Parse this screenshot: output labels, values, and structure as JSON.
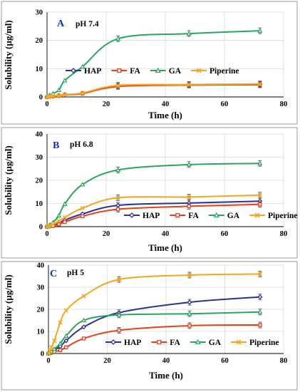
{
  "colors": {
    "HAP": "#2e3192",
    "FA": "#e8411a",
    "GA": "#2aa55c",
    "Piperine": "#f5a623"
  },
  "chart_data": [
    {
      "type": "line",
      "panel_label": "A",
      "title": "pH 7.4",
      "xlabel": "Time (h)",
      "ylabel": "Solubility (µg/ml)",
      "xlim": [
        0,
        80
      ],
      "ylim": [
        0,
        30
      ],
      "x_ticks": [
        0,
        20,
        40,
        60,
        80
      ],
      "y_ticks": [
        0,
        10,
        20,
        30
      ],
      "grid": true,
      "legend_position": "upper-left, single row",
      "series": [
        {
          "name": "HAP",
          "marker": "diamond",
          "x": [
            0,
            0.5,
            1,
            2,
            4,
            6,
            12,
            24,
            48,
            72
          ],
          "y": [
            0,
            0.1,
            0.2,
            0.3,
            0.5,
            0.8,
            1.3,
            4.0,
            4.3,
            4.5
          ]
        },
        {
          "name": "FA",
          "marker": "square",
          "x": [
            0,
            0.5,
            1,
            2,
            4,
            6,
            12,
            24,
            48,
            72
          ],
          "y": [
            0,
            0.1,
            0.1,
            0.2,
            0.4,
            0.7,
            1.2,
            3.7,
            4.2,
            4.3
          ]
        },
        {
          "name": "GA",
          "marker": "triangle",
          "x": [
            0,
            0.5,
            1,
            2,
            4,
            6,
            12,
            24,
            48,
            72
          ],
          "y": [
            0,
            0.3,
            0.6,
            1.2,
            2.4,
            5.8,
            10.7,
            20.6,
            22.4,
            23.4
          ]
        },
        {
          "name": "Piperine",
          "marker": "x",
          "x": [
            0,
            0.5,
            1,
            2,
            4,
            6,
            12,
            24,
            48,
            72
          ],
          "y": [
            0,
            0.1,
            0.2,
            0.3,
            0.5,
            0.8,
            1.4,
            4.1,
            4.4,
            4.6
          ]
        }
      ]
    },
    {
      "type": "line",
      "panel_label": "B",
      "title": "pH 6.8",
      "xlabel": "Time (h)",
      "ylabel": "Solubility (µg/ml)",
      "xlim": [
        0,
        80
      ],
      "ylim": [
        0,
        40
      ],
      "x_ticks": [
        0,
        20,
        40,
        60,
        80
      ],
      "y_ticks": [
        0,
        10,
        20,
        30,
        40
      ],
      "grid": true,
      "legend_position": "bottom-right, single row",
      "series": [
        {
          "name": "HAP",
          "marker": "diamond",
          "x": [
            0,
            0.5,
            1,
            2,
            4,
            6,
            12,
            24,
            48,
            72
          ],
          "y": [
            0,
            0.1,
            0.2,
            0.4,
            1.5,
            2.8,
            5.5,
            9.2,
            10.2,
            11.0
          ]
        },
        {
          "name": "FA",
          "marker": "square",
          "x": [
            0,
            0.5,
            1,
            2,
            4,
            6,
            12,
            24,
            48,
            72
          ],
          "y": [
            0,
            0.1,
            0.2,
            0.3,
            1.0,
            2.0,
            4.5,
            7.5,
            8.8,
            9.6
          ]
        },
        {
          "name": "GA",
          "marker": "triangle",
          "x": [
            0,
            0.5,
            1,
            2,
            4,
            6,
            12,
            24,
            48,
            72
          ],
          "y": [
            0,
            0.3,
            0.8,
            1.8,
            4.8,
            9.8,
            18.2,
            24.5,
            26.8,
            27.3
          ]
        },
        {
          "name": "Piperine",
          "marker": "x",
          "x": [
            0,
            0.5,
            1,
            2,
            4,
            6,
            12,
            24,
            48,
            72
          ],
          "y": [
            0,
            0.2,
            0.5,
            1.0,
            2.5,
            4.0,
            8.0,
            12.5,
            12.8,
            13.6
          ]
        }
      ]
    },
    {
      "type": "line",
      "panel_label": "C",
      "title": "pH 5",
      "xlabel": "Time (h)",
      "ylabel": "Solubility (µg/ml)",
      "xlim": [
        0,
        80
      ],
      "ylim": [
        0,
        40
      ],
      "x_ticks": [
        0,
        20,
        40,
        60,
        80
      ],
      "y_ticks": [
        0,
        10,
        20,
        30,
        40
      ],
      "grid": true,
      "legend_position": "bottom-right, single row",
      "series": [
        {
          "name": "HAP",
          "marker": "diamond",
          "x": [
            0,
            0.5,
            1,
            2,
            4,
            6,
            12,
            24,
            48,
            72
          ],
          "y": [
            0,
            0.3,
            0.7,
            1.5,
            3.2,
            5.8,
            12.0,
            18.5,
            23.2,
            25.6
          ]
        },
        {
          "name": "FA",
          "marker": "square",
          "x": [
            0,
            0.5,
            1,
            2,
            4,
            6,
            12,
            24,
            48,
            72
          ],
          "y": [
            0,
            0.2,
            0.4,
            0.8,
            1.5,
            2.8,
            6.8,
            10.5,
            12.6,
            12.9
          ]
        },
        {
          "name": "GA",
          "marker": "triangle",
          "x": [
            0,
            0.5,
            1,
            2,
            4,
            6,
            12,
            24,
            48,
            72
          ],
          "y": [
            0,
            0.4,
            1.0,
            2.0,
            4.5,
            8.0,
            15.0,
            17.5,
            18.0,
            18.8
          ]
        },
        {
          "name": "Piperine",
          "marker": "x",
          "x": [
            0,
            0.5,
            1,
            2,
            4,
            6,
            12,
            24,
            48,
            72
          ],
          "y": [
            0,
            1.2,
            2.8,
            5.8,
            14.0,
            19.5,
            26.0,
            33.5,
            35.5,
            36.0
          ]
        }
      ]
    }
  ]
}
